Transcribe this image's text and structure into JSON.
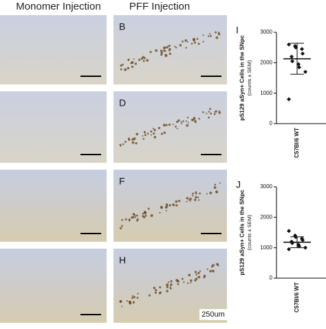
{
  "figure": {
    "columns": [
      "Monomer Injection",
      "PFF Injection"
    ],
    "panels": [
      "B",
      "D",
      "F",
      "H"
    ],
    "scale_bar": "250um"
  },
  "chart_data": [
    {
      "type": "scatter",
      "panel": "I",
      "ylabel": "pS129 aSyn+ Cells in the SNpc",
      "ylabel_note": "(counts ± SEM)",
      "categories": [
        "C57Bl/6 WT"
      ],
      "values": [
        2600,
        2550,
        2500,
        2450,
        2300,
        2200,
        2050,
        1950,
        1850,
        1700,
        800
      ],
      "mean": 2130,
      "error": 510,
      "color": "#111111",
      "ylim": [
        0,
        3000
      ],
      "yticks": [
        0,
        1000,
        2000,
        3000
      ]
    },
    {
      "type": "scatter",
      "panel": "J",
      "ylabel": "pS129 aSyn+ Cells in the SNpc",
      "ylabel_note": "(counts ± SEM)",
      "categories": [
        "C57Bl/6 WT"
      ],
      "values": [
        1550,
        1400,
        1350,
        1300,
        1250,
        1200,
        1150,
        1100,
        1050,
        1000,
        950
      ],
      "mean": 1180,
      "error": 180,
      "color": "#111111",
      "ylim": [
        0,
        3000
      ],
      "yticks": [
        0,
        1000,
        2000,
        3000
      ]
    }
  ]
}
